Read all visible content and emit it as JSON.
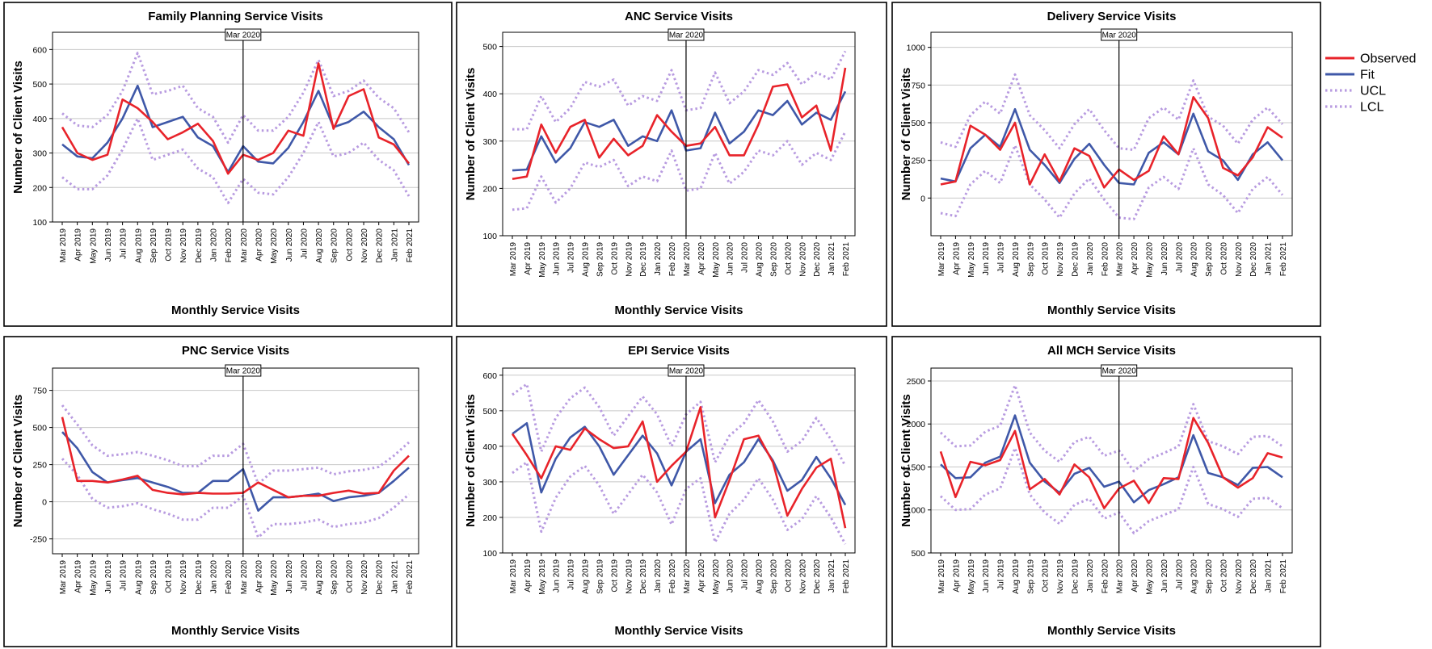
{
  "chart_data": [
    {
      "type": "line",
      "title": "Family Planning Service Visits",
      "xlabel": "Monthly Service Visits",
      "ylabel": "Number of Client Visits",
      "ylim": [
        100,
        650
      ],
      "yticks": [
        100,
        200,
        300,
        400,
        500,
        600
      ],
      "marker_label": "Mar 2020",
      "marker_index": 12,
      "categories": [
        "Mar 2019",
        "Apr 2019",
        "May 2019",
        "Jun 2019",
        "Jul 2019",
        "Aug 2019",
        "Sep 2019",
        "Oct 2019",
        "Nov 2019",
        "Dec 2019",
        "Jan 2020",
        "Feb 2020",
        "Mar 2020",
        "Apr 2020",
        "May 2020",
        "Jun 2020",
        "Jul 2020",
        "Aug 2020",
        "Sep 2020",
        "Oct 2020",
        "Nov 2020",
        "Dec 2020",
        "Jan 2021",
        "Feb 2021"
      ],
      "series": [
        {
          "name": "Observed",
          "color": "#e8232a",
          "style": "solid",
          "values": [
            375,
            300,
            280,
            295,
            455,
            430,
            390,
            340,
            360,
            385,
            335,
            240,
            295,
            280,
            300,
            365,
            350,
            560,
            370,
            465,
            485,
            345,
            325,
            270
          ]
        },
        {
          "name": "Fit",
          "color": "#3f58a8",
          "style": "solid",
          "values": [
            325,
            290,
            285,
            330,
            400,
            495,
            375,
            390,
            405,
            345,
            320,
            245,
            320,
            275,
            270,
            315,
            390,
            480,
            375,
            390,
            420,
            375,
            340,
            265
          ]
        },
        {
          "name": "UCL",
          "color": "#b89be0",
          "style": "dotted",
          "values": [
            415,
            380,
            375,
            410,
            480,
            590,
            470,
            480,
            495,
            430,
            405,
            330,
            410,
            365,
            365,
            405,
            475,
            570,
            465,
            480,
            510,
            460,
            430,
            360
          ]
        },
        {
          "name": "LCL",
          "color": "#b89be0",
          "style": "dotted",
          "values": [
            230,
            195,
            195,
            235,
            310,
            400,
            280,
            295,
            310,
            255,
            230,
            155,
            225,
            185,
            180,
            230,
            300,
            390,
            290,
            300,
            330,
            280,
            250,
            175
          ]
        }
      ]
    },
    {
      "type": "line",
      "title": "ANC Service Visits",
      "xlabel": "Monthly Service Visits",
      "ylabel": "Number of Client Visits",
      "ylim": [
        100,
        530
      ],
      "yticks": [
        100,
        200,
        300,
        400,
        500
      ],
      "marker_label": "Mar 2020",
      "marker_index": 12,
      "categories": [
        "Mar 2019",
        "Apr 2019",
        "May 2019",
        "Jun 2019",
        "Jul 2019",
        "Aug 2019",
        "Sep 2019",
        "Oct 2019",
        "Nov 2019",
        "Dec 2019",
        "Jan 2020",
        "Feb 2020",
        "Mar 2020",
        "Apr 2020",
        "May 2020",
        "Jun 2020",
        "Jul 2020",
        "Aug 2020",
        "Sep 2020",
        "Oct 2020",
        "Nov 2020",
        "Dec 2020",
        "Jan 2021",
        "Feb 2021"
      ],
      "series": [
        {
          "name": "Observed",
          "color": "#e8232a",
          "style": "solid",
          "values": [
            220,
            225,
            335,
            275,
            330,
            345,
            265,
            305,
            270,
            290,
            355,
            320,
            290,
            295,
            330,
            270,
            270,
            335,
            415,
            420,
            350,
            375,
            280,
            455
          ]
        },
        {
          "name": "Fit",
          "color": "#3f58a8",
          "style": "solid",
          "values": [
            238,
            240,
            310,
            255,
            285,
            340,
            330,
            345,
            290,
            310,
            300,
            365,
            280,
            285,
            360,
            295,
            320,
            365,
            355,
            385,
            335,
            360,
            345,
            405
          ]
        },
        {
          "name": "UCL",
          "color": "#b89be0",
          "style": "dotted",
          "values": [
            325,
            325,
            395,
            340,
            370,
            425,
            415,
            430,
            375,
            395,
            385,
            450,
            365,
            370,
            445,
            380,
            405,
            450,
            440,
            465,
            420,
            445,
            430,
            490
          ]
        },
        {
          "name": "LCL",
          "color": "#b89be0",
          "style": "dotted",
          "values": [
            155,
            158,
            225,
            170,
            200,
            255,
            245,
            260,
            205,
            225,
            215,
            280,
            195,
            200,
            275,
            210,
            235,
            280,
            270,
            300,
            250,
            275,
            260,
            320
          ]
        }
      ]
    },
    {
      "type": "line",
      "title": "Delivery Service Visits",
      "xlabel": "Monthly Service Visits",
      "ylabel": "Number of Client Visits",
      "ylim": [
        -250,
        1100
      ],
      "yticks": [
        0,
        250,
        500,
        750,
        1000
      ],
      "marker_label": "Mar 2020",
      "marker_index": 12,
      "categories": [
        "Mar 2019",
        "Apr 2019",
        "May 2019",
        "Jun 2019",
        "Jul 2019",
        "Aug 2019",
        "Sep 2019",
        "Oct 2019",
        "Nov 2019",
        "Dec 2019",
        "Jan 2020",
        "Feb 2020",
        "Mar 2020",
        "Apr 2020",
        "May 2020",
        "Jun 2020",
        "Jul 2020",
        "Aug 2020",
        "Sep 2020",
        "Oct 2020",
        "Nov 2020",
        "Dec 2020",
        "Jan 2021",
        "Feb 2021"
      ],
      "series": [
        {
          "name": "Observed",
          "color": "#e8232a",
          "style": "solid",
          "values": [
            90,
            110,
            480,
            420,
            320,
            500,
            90,
            290,
            110,
            330,
            280,
            70,
            190,
            120,
            180,
            410,
            290,
            670,
            530,
            200,
            150,
            270,
            470,
            400
          ]
        },
        {
          "name": "Fit",
          "color": "#3f58a8",
          "style": "solid",
          "values": [
            130,
            110,
            330,
            420,
            340,
            590,
            320,
            220,
            100,
            260,
            360,
            220,
            100,
            90,
            300,
            370,
            290,
            560,
            310,
            250,
            120,
            290,
            370,
            250
          ]
        },
        {
          "name": "UCL",
          "color": "#b89be0",
          "style": "dotted",
          "values": [
            370,
            340,
            550,
            640,
            560,
            820,
            550,
            450,
            330,
            490,
            590,
            450,
            330,
            320,
            530,
            600,
            520,
            780,
            540,
            480,
            360,
            520,
            600,
            490
          ]
        },
        {
          "name": "LCL",
          "color": "#b89be0",
          "style": "dotted",
          "values": [
            -100,
            -120,
            90,
            180,
            100,
            350,
            90,
            -10,
            -130,
            30,
            130,
            -10,
            -130,
            -140,
            70,
            140,
            60,
            330,
            90,
            20,
            -100,
            60,
            140,
            20
          ]
        }
      ]
    },
    {
      "type": "line",
      "title": "PNC Service Visits",
      "xlabel": "Monthly Service Visits",
      "ylabel": "Number of Client Visits",
      "ylim": [
        -350,
        900
      ],
      "yticks": [
        -250,
        0,
        250,
        500,
        750
      ],
      "marker_label": "Mar 2020",
      "marker_index": 12,
      "categories": [
        "Mar 2019",
        "Apr 2019",
        "May 2019",
        "Jun 2019",
        "Jul 2019",
        "Aug 2019",
        "Sep 2019",
        "Oct 2019",
        "Nov 2019",
        "Dec 2019",
        "Jan 2020",
        "Feb 2020",
        "Mar 2020",
        "Apr 2020",
        "May 2020",
        "Jun 2020",
        "Jul 2020",
        "Aug 2020",
        "Sep 2020",
        "Oct 2020",
        "Nov 2020",
        "Dec 2020",
        "Jan 2021",
        "Feb 2021"
      ],
      "series": [
        {
          "name": "Observed",
          "color": "#e8232a",
          "style": "solid",
          "values": [
            570,
            140,
            140,
            130,
            150,
            175,
            80,
            60,
            50,
            60,
            55,
            55,
            60,
            130,
            80,
            30,
            40,
            40,
            60,
            75,
            55,
            60,
            210,
            310
          ]
        },
        {
          "name": "Fit",
          "color": "#3f58a8",
          "style": "solid",
          "values": [
            470,
            360,
            200,
            130,
            145,
            160,
            130,
            100,
            60,
            60,
            140,
            140,
            220,
            -60,
            30,
            30,
            40,
            55,
            5,
            30,
            40,
            60,
            140,
            230
          ]
        },
        {
          "name": "UCL",
          "color": "#b89be0",
          "style": "dotted",
          "values": [
            650,
            520,
            380,
            310,
            320,
            335,
            310,
            280,
            240,
            240,
            310,
            310,
            390,
            120,
            210,
            210,
            220,
            230,
            185,
            205,
            215,
            235,
            310,
            400
          ]
        },
        {
          "name": "LCL",
          "color": "#b89be0",
          "style": "dotted",
          "values": [
            290,
            180,
            20,
            -40,
            -30,
            -10,
            -50,
            -80,
            -120,
            -120,
            -40,
            -40,
            40,
            -240,
            -150,
            -150,
            -140,
            -120,
            -170,
            -150,
            -140,
            -110,
            -40,
            50
          ]
        }
      ]
    },
    {
      "type": "line",
      "title": "EPI Service Visits",
      "xlabel": "Monthly Service Visits",
      "ylabel": "Number of Client Visits",
      "ylim": [
        100,
        620
      ],
      "yticks": [
        100,
        200,
        300,
        400,
        500,
        600
      ],
      "marker_label": "Mar 2020",
      "marker_index": 12,
      "categories": [
        "Mar 2019",
        "Apr 2019",
        "May 2019",
        "Jun 2019",
        "Jul 2019",
        "Aug 2019",
        "Sep 2019",
        "Oct 2019",
        "Nov 2019",
        "Dec 2019",
        "Jan 2020",
        "Feb 2020",
        "Mar 2020",
        "Apr 2020",
        "May 2020",
        "Jun 2020",
        "Jul 2020",
        "Aug 2020",
        "Sep 2020",
        "Oct 2020",
        "Nov 2020",
        "Dec 2020",
        "Jan 2021",
        "Feb 2021"
      ],
      "series": [
        {
          "name": "Observed",
          "color": "#e8232a",
          "style": "solid",
          "values": [
            435,
            375,
            310,
            400,
            390,
            450,
            420,
            395,
            400,
            470,
            300,
            345,
            385,
            510,
            200,
            305,
            420,
            430,
            355,
            205,
            280,
            340,
            365,
            170
          ]
        },
        {
          "name": "Fit",
          "color": "#3f58a8",
          "style": "solid",
          "values": [
            435,
            465,
            270,
            365,
            425,
            455,
            400,
            320,
            375,
            430,
            380,
            290,
            385,
            420,
            240,
            320,
            355,
            420,
            360,
            275,
            305,
            370,
            310,
            235
          ]
        },
        {
          "name": "UCL",
          "color": "#b89be0",
          "style": "dotted",
          "values": [
            545,
            575,
            385,
            480,
            535,
            565,
            510,
            430,
            485,
            540,
            490,
            400,
            490,
            525,
            355,
            430,
            465,
            530,
            470,
            385,
            415,
            480,
            420,
            345
          ]
        },
        {
          "name": "LCL",
          "color": "#b89be0",
          "style": "dotted",
          "values": [
            325,
            355,
            160,
            255,
            315,
            345,
            290,
            210,
            265,
            320,
            270,
            180,
            280,
            310,
            130,
            210,
            250,
            310,
            250,
            165,
            195,
            260,
            200,
            125
          ]
        }
      ]
    },
    {
      "type": "line",
      "title": "All MCH Service Visits",
      "xlabel": "Monthly Service Visits",
      "ylabel": "Number of Client Visits",
      "ylim": [
        500,
        2650
      ],
      "yticks": [
        500,
        1000,
        1500,
        2000,
        2500
      ],
      "marker_label": "Mar 2020",
      "marker_index": 12,
      "categories": [
        "Mar 2019",
        "Apr 2019",
        "May 2019",
        "Jun 2019",
        "Jul 2019",
        "Aug 2019",
        "Sep 2019",
        "Oct 2019",
        "Nov 2019",
        "Dec 2019",
        "Jan 2020",
        "Feb 2020",
        "Mar 2020",
        "Apr 2020",
        "May 2020",
        "Jun 2020",
        "Jul 2020",
        "Aug 2020",
        "Sep 2020",
        "Oct 2020",
        "Nov 2020",
        "Dec 2020",
        "Jan 2021",
        "Feb 2021"
      ],
      "series": [
        {
          "name": "Observed",
          "color": "#e8232a",
          "style": "solid",
          "values": [
            1680,
            1150,
            1560,
            1520,
            1580,
            1920,
            1240,
            1360,
            1180,
            1530,
            1380,
            1020,
            1250,
            1340,
            1080,
            1370,
            1360,
            2070,
            1780,
            1380,
            1260,
            1370,
            1660,
            1610
          ]
        },
        {
          "name": "Fit",
          "color": "#3f58a8",
          "style": "solid",
          "values": [
            1530,
            1370,
            1380,
            1550,
            1620,
            2100,
            1550,
            1330,
            1200,
            1420,
            1490,
            1270,
            1330,
            1090,
            1230,
            1300,
            1380,
            1870,
            1430,
            1380,
            1290,
            1490,
            1500,
            1380
          ]
        },
        {
          "name": "UCL",
          "color": "#b89be0",
          "style": "dotted",
          "values": [
            1900,
            1740,
            1750,
            1910,
            1980,
            2450,
            1900,
            1690,
            1560,
            1790,
            1850,
            1630,
            1690,
            1450,
            1590,
            1660,
            1740,
            2230,
            1800,
            1740,
            1650,
            1850,
            1860,
            1740
          ]
        },
        {
          "name": "LCL",
          "color": "#b89be0",
          "style": "dotted",
          "values": [
            1160,
            1000,
            1010,
            1180,
            1250,
            1720,
            1180,
            970,
            840,
            1060,
            1130,
            900,
            970,
            730,
            870,
            940,
            1010,
            1500,
            1070,
            1010,
            920,
            1130,
            1140,
            1020
          ]
        }
      ]
    }
  ],
  "legend": {
    "items": [
      {
        "label": "Observed",
        "color": "#e8232a",
        "style": "solid"
      },
      {
        "label": "Fit",
        "color": "#3f58a8",
        "style": "solid"
      },
      {
        "label": "UCL",
        "color": "#b89be0",
        "style": "dotted"
      },
      {
        "label": "LCL",
        "color": "#b89be0",
        "style": "dotted"
      }
    ]
  }
}
